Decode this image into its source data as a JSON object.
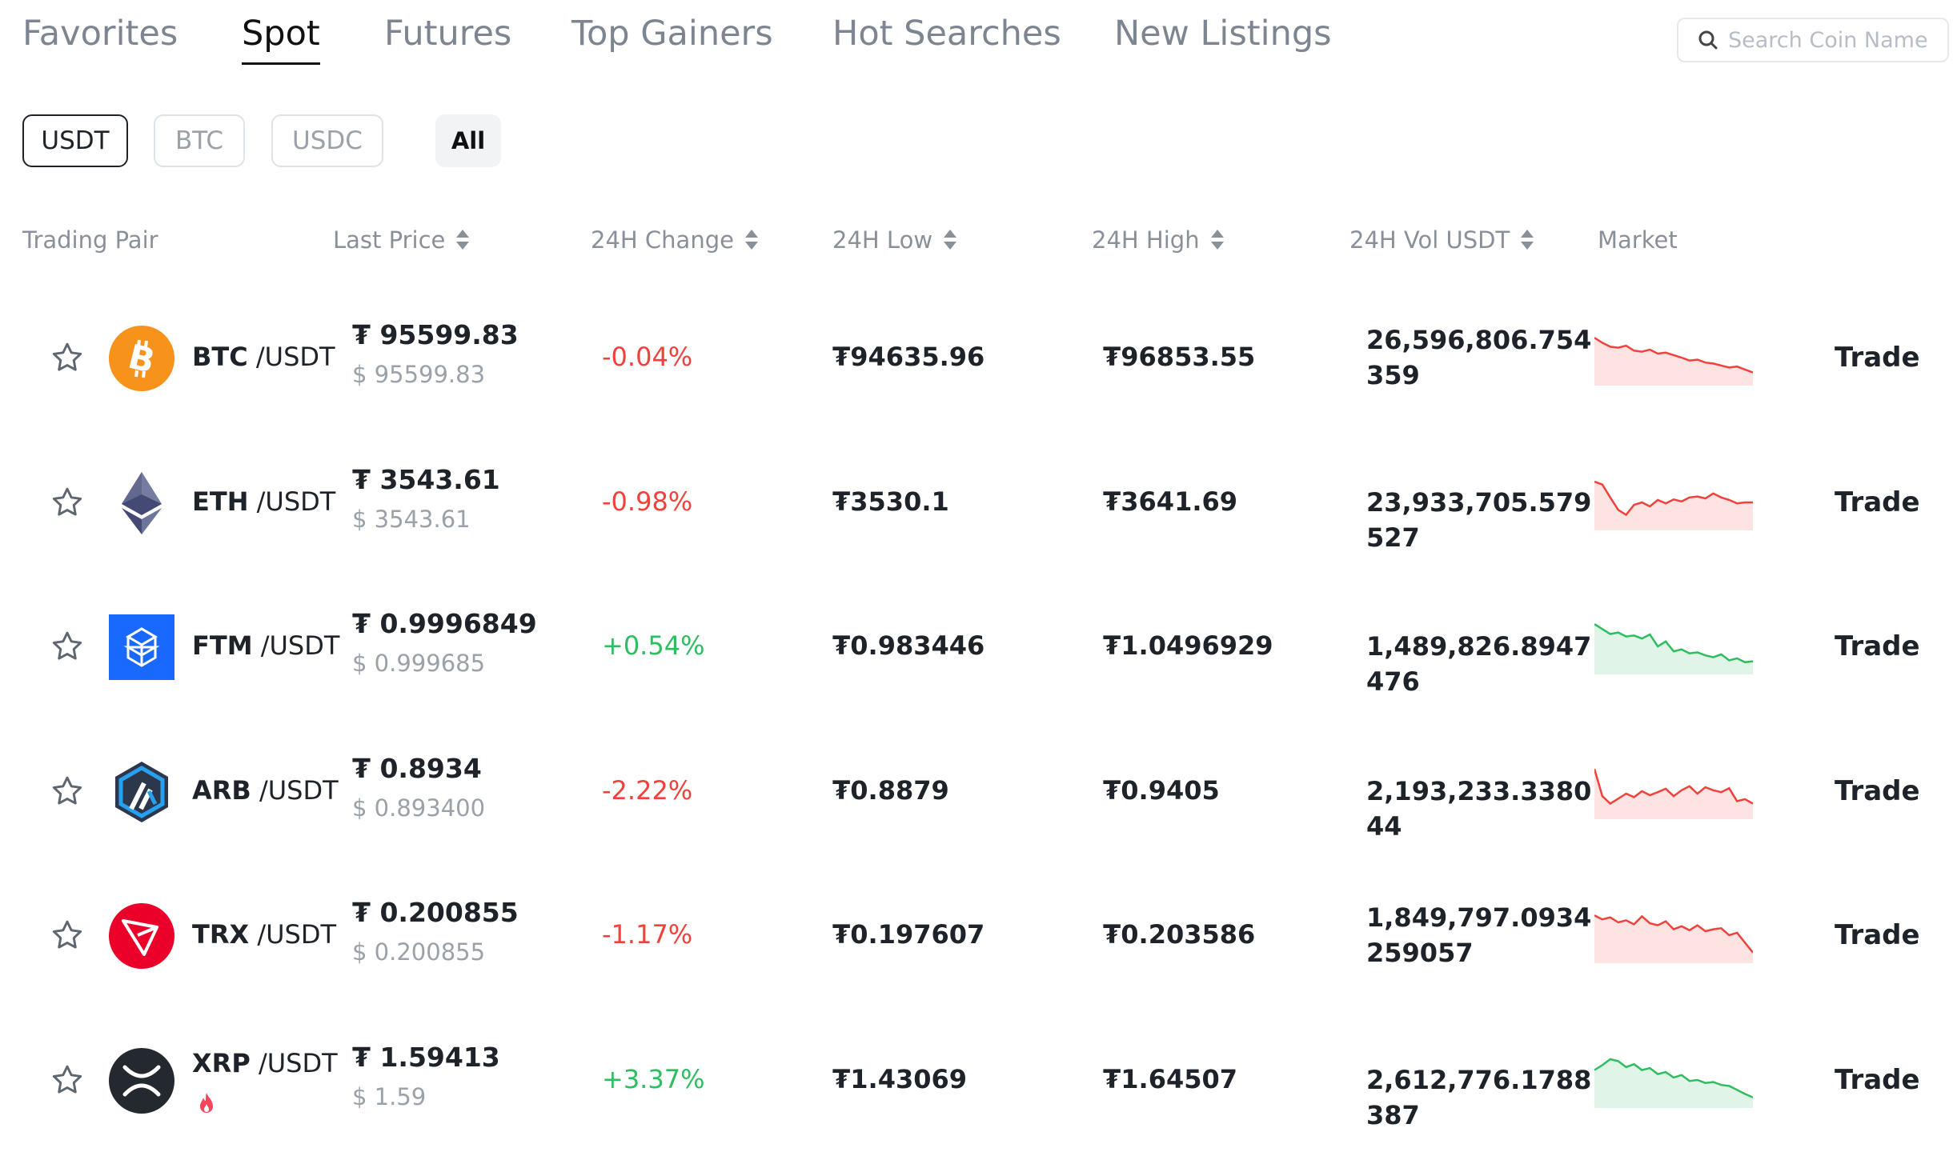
{
  "tabs": [
    "Favorites",
    "Spot",
    "Futures",
    "Top Gainers",
    "Hot Searches",
    "New Listings"
  ],
  "active_tab": "Spot",
  "search": {
    "placeholder": "Search Coin Name"
  },
  "quote_chips": [
    "USDT",
    "BTC",
    "USDC",
    "All"
  ],
  "active_chip": "USDT",
  "headers": {
    "pair": "Trading Pair",
    "last_price": "Last Price",
    "change": "24H Change",
    "low": "24H Low",
    "high": "24H High",
    "vol": "24H Vol USDT",
    "market": "Market"
  },
  "colors": {
    "up": "#2ebd5f",
    "down": "#f0423c",
    "text": "#1e2329",
    "muted": "#9aa1a9"
  },
  "rows": [
    {
      "icon": "btc-icon",
      "base": "BTC",
      "quote": "/USDT",
      "price": "₮ 95599.83",
      "price_usd": "$ 95599.83",
      "change": "-0.04%",
      "dir": "down",
      "low": "₮94635.96",
      "high": "₮96853.55",
      "vol": "26,596,806.754359",
      "trade": "Trade",
      "spark": [
        0.9,
        0.8,
        0.72,
        0.7,
        0.74,
        0.64,
        0.62,
        0.66,
        0.58,
        0.6,
        0.55,
        0.5,
        0.44,
        0.46,
        0.4,
        0.38,
        0.34,
        0.3,
        0.32,
        0.26,
        0.2
      ]
    },
    {
      "icon": "eth-icon",
      "base": "ETH",
      "quote": "/USDT",
      "price": "₮ 3543.61",
      "price_usd": "$ 3543.61",
      "change": "-0.98%",
      "dir": "down",
      "low": "₮3530.1",
      "high": "₮3641.69",
      "vol": "23,933,705.579527",
      "trade": "Trade",
      "spark": [
        0.92,
        0.86,
        0.6,
        0.35,
        0.25,
        0.45,
        0.5,
        0.42,
        0.55,
        0.48,
        0.56,
        0.52,
        0.6,
        0.62,
        0.58,
        0.68,
        0.6,
        0.55,
        0.48,
        0.5,
        0.5
      ]
    },
    {
      "icon": "ftm-icon",
      "base": "FTM",
      "quote": "/USDT",
      "price": "₮ 0.9996849",
      "price_usd": "$ 0.999685",
      "change": "+0.54%",
      "dir": "up",
      "low": "₮0.983446",
      "high": "₮1.0496929",
      "vol": "1,489,826.8947476",
      "trade": "Trade",
      "spark": [
        0.95,
        0.85,
        0.75,
        0.78,
        0.7,
        0.72,
        0.66,
        0.74,
        0.5,
        0.6,
        0.4,
        0.44,
        0.36,
        0.38,
        0.32,
        0.28,
        0.34,
        0.22,
        0.26,
        0.18,
        0.2
      ]
    },
    {
      "icon": "arb-icon",
      "base": "ARB",
      "quote": "/USDT",
      "price": "₮ 0.8934",
      "price_usd": "$ 0.893400",
      "change": "-2.22%",
      "dir": "down",
      "low": "₮0.8879",
      "high": "₮0.9405",
      "vol": "2,193,233.338044",
      "trade": "Trade",
      "spark": [
        0.95,
        0.4,
        0.25,
        0.35,
        0.45,
        0.38,
        0.5,
        0.42,
        0.48,
        0.55,
        0.4,
        0.52,
        0.6,
        0.45,
        0.58,
        0.52,
        0.48,
        0.56,
        0.3,
        0.34,
        0.25
      ]
    },
    {
      "icon": "trx-icon",
      "base": "TRX",
      "quote": "/USDT",
      "price": "₮ 0.200855",
      "price_usd": "$ 0.200855",
      "change": "-1.17%",
      "dir": "down",
      "low": "₮0.197607",
      "high": "₮0.203586",
      "vol": "1,849,797.0934259057",
      "trade": "Trade",
      "spark": [
        0.9,
        0.82,
        0.86,
        0.76,
        0.8,
        0.72,
        0.88,
        0.74,
        0.7,
        0.78,
        0.62,
        0.68,
        0.6,
        0.7,
        0.58,
        0.62,
        0.64,
        0.5,
        0.55,
        0.35,
        0.15
      ]
    },
    {
      "icon": "xrp-icon",
      "base": "XRP",
      "quote": "/USDT",
      "price": "₮ 1.59413",
      "price_usd": "$ 1.59",
      "change": "+3.37%",
      "dir": "up",
      "low": "₮1.43069",
      "high": "₮1.64507",
      "vol": "2,612,776.1788387",
      "trade": "Trade",
      "hot": true,
      "spark": [
        0.7,
        0.8,
        0.92,
        0.88,
        0.76,
        0.82,
        0.7,
        0.74,
        0.62,
        0.66,
        0.55,
        0.6,
        0.48,
        0.5,
        0.44,
        0.46,
        0.4,
        0.38,
        0.3,
        0.22,
        0.15
      ]
    }
  ]
}
